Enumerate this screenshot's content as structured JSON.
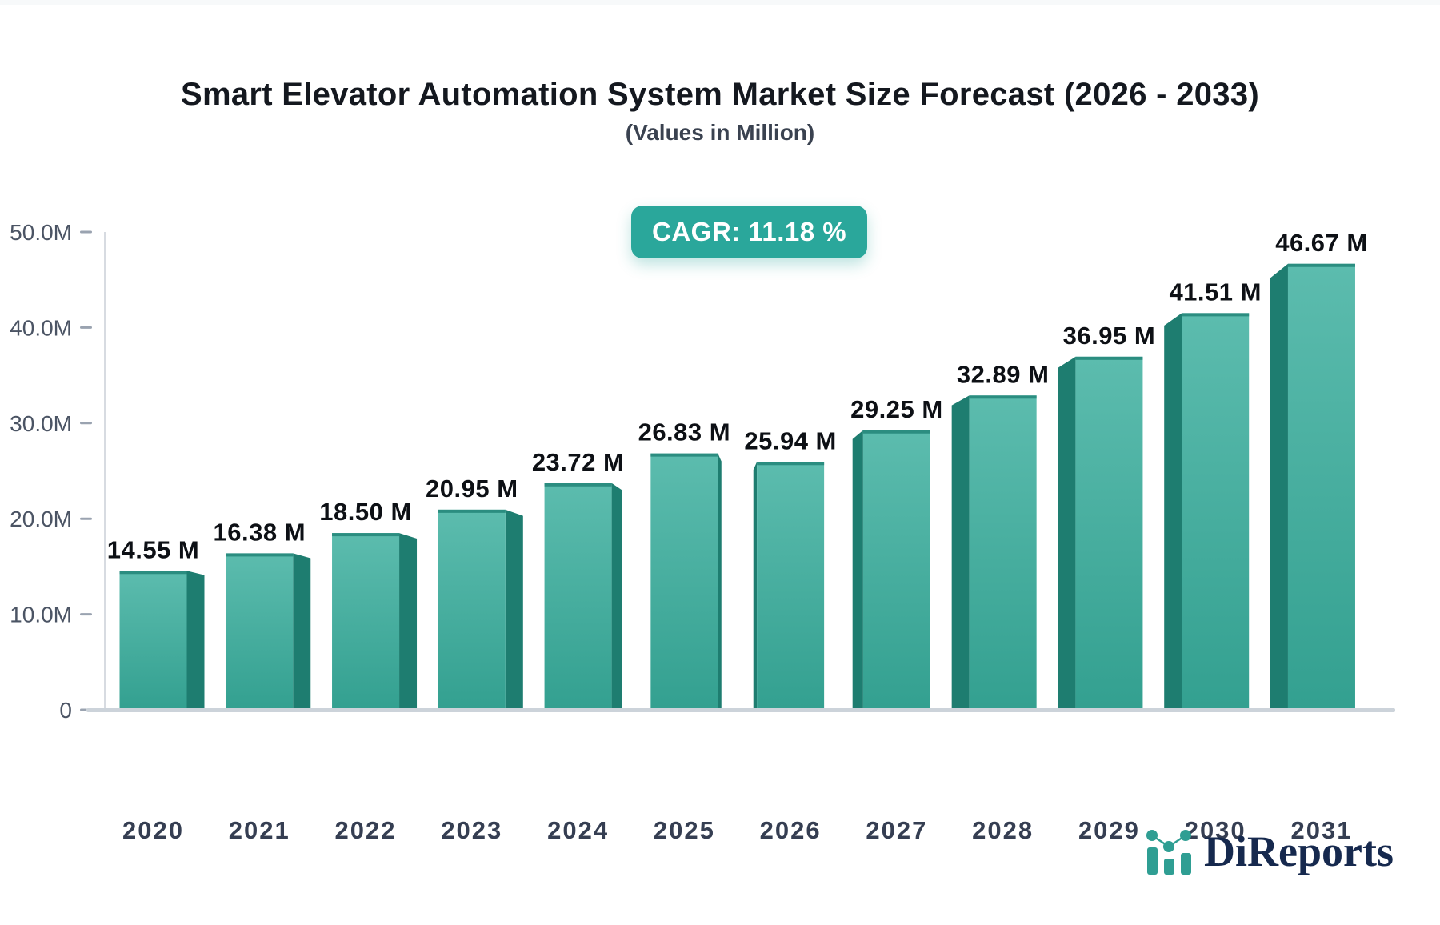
{
  "header": {
    "title": "Smart Elevator Automation System Market Size Forecast (2026 - 2033)",
    "subtitle": "(Values in Million)"
  },
  "badge": {
    "text": "CAGR: 11.18 %",
    "bg_color": "#2aa79b",
    "text_color": "#ffffff"
  },
  "chart_data": {
    "type": "bar",
    "title": "Smart Elevator Automation System Market Size Forecast (2026 - 2033)",
    "subtitle": "(Values in Million)",
    "unit": "Million",
    "cagr_percent": 11.18,
    "categories": [
      "2020",
      "2021",
      "2022",
      "2023",
      "2024",
      "2025",
      "2026",
      "2027",
      "2028",
      "2029",
      "2030",
      "2031"
    ],
    "values": [
      14.55,
      16.38,
      18.5,
      20.95,
      23.72,
      26.83,
      25.94,
      29.25,
      32.89,
      36.95,
      41.51,
      46.67
    ],
    "value_labels": [
      "14.55 M",
      "16.38 M",
      "18.50 M",
      "20.95 M",
      "23.72 M",
      "26.83 M",
      "25.94 M",
      "29.25 M",
      "32.89 M",
      "36.95 M",
      "41.51 M",
      "46.67 M"
    ],
    "ylim": [
      0,
      50
    ],
    "yticks": {
      "values": [
        0,
        10,
        20,
        30,
        40,
        50
      ],
      "labels": [
        "0",
        "10.0M",
        "20.0M",
        "30.0M",
        "40.0M",
        "50.0M"
      ]
    },
    "grid": false,
    "legend": false,
    "style_3d": true,
    "colors": {
      "bar_front_top": "#5cbcae",
      "bar_front_bottom": "#33a090",
      "bar_side": "#1e7d70",
      "bar_top_edge": "#2b8d80",
      "value_label": "#0d1015",
      "x_tick_label": "#353e52",
      "y_tick_label": "#4b5464",
      "x_axis_line": "#ccd3da",
      "y_axis_line": "#d7dbe1",
      "tick_dash": "#9aa3b0"
    }
  },
  "logo": {
    "text": "DiReports",
    "icon": "mini-bar-chart-icon",
    "text_color": "#16294e",
    "icon_color": "#2f9e93"
  }
}
